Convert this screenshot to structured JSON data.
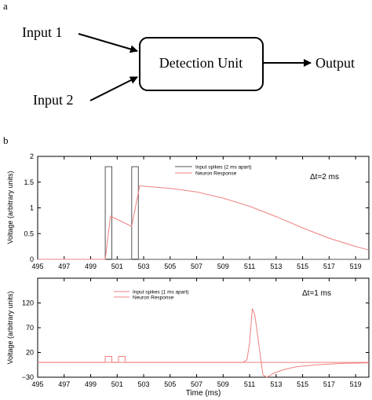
{
  "panel_a": {
    "label": "a",
    "box_label": "Detection Unit",
    "input1": "Input 1",
    "input2": "Input 2",
    "output": "Output"
  },
  "panel_b_label": "b",
  "chart_data": [
    {
      "type": "line",
      "ylabel": "Voltage (arbitrary units)",
      "xlabel": "",
      "xlim": [
        495,
        520
      ],
      "ylim": [
        0,
        2
      ],
      "xticks": [
        "495",
        "497",
        "499",
        "501",
        "503",
        "505",
        "507",
        "509",
        "511",
        "513",
        "515",
        "517",
        "519"
      ],
      "yticks": [
        "0",
        "0.5",
        "1",
        "1.5",
        "2"
      ],
      "annotation": "Δt=2 ms",
      "legend": [
        "Input spikes (2 ms apart)",
        "Neuron Response"
      ],
      "series": [
        {
          "name": "Input spikes (2 ms apart)",
          "color": "#555555",
          "x": [
            495,
            500.1,
            500.1,
            500.6,
            500.6,
            502.1,
            502.1,
            502.6,
            502.6,
            520
          ],
          "y": [
            0,
            0,
            1.8,
            1.8,
            0,
            0,
            1.8,
            1.8,
            0,
            0
          ]
        },
        {
          "name": "Neuron Response",
          "color": "#f08080",
          "x": [
            495,
            500.1,
            500.5,
            502.1,
            502.7,
            503,
            505,
            507,
            509,
            511,
            513,
            515,
            517,
            519,
            520
          ],
          "y": [
            0,
            0,
            0.84,
            0.64,
            1.43,
            1.42,
            1.38,
            1.31,
            1.19,
            1.03,
            0.83,
            0.61,
            0.41,
            0.25,
            0.18
          ]
        }
      ]
    },
    {
      "type": "line",
      "ylabel": "Voltage (arbitrary units)",
      "xlabel": "Time (ms)",
      "xlim": [
        495,
        520
      ],
      "ylim": [
        -30,
        170
      ],
      "xticks": [
        "495",
        "497",
        "499",
        "501",
        "503",
        "505",
        "507",
        "509",
        "511",
        "513",
        "515",
        "517",
        "519"
      ],
      "yticks": [
        "−30",
        "20",
        "70",
        "120"
      ],
      "annotation": "Δt=1 ms",
      "legend": [
        "Input spikes (1 ms apart)",
        "Neuron Response"
      ],
      "series": [
        {
          "name": "Input spikes (1 ms apart)",
          "color": "#f08080",
          "x": [
            495,
            500.1,
            500.1,
            500.6,
            500.6,
            501.1,
            501.1,
            501.6,
            501.6,
            520
          ],
          "y": [
            0,
            0,
            12,
            12,
            0,
            0,
            12,
            12,
            0,
            0
          ]
        },
        {
          "name": "Neuron Response",
          "color": "#f08080",
          "x": [
            495,
            510.5,
            510.8,
            511.0,
            511.2,
            511.4,
            511.6,
            511.8,
            512.0,
            512.3,
            512.8,
            513.5,
            514.5,
            516,
            518,
            520
          ],
          "y": [
            0,
            0,
            5,
            40,
            109,
            95,
            55,
            15,
            -25,
            -30,
            -22,
            -15,
            -9,
            -5,
            -2,
            -1
          ]
        }
      ]
    }
  ]
}
